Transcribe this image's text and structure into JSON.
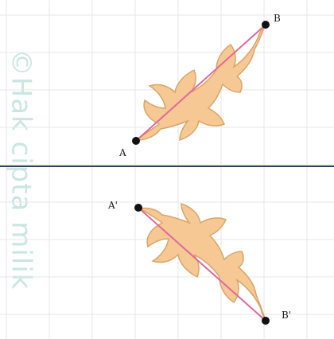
{
  "watermark": "©Hak cipta milik ",
  "points": {
    "A": {
      "label": "A",
      "x": 3,
      "y": -0.6
    },
    "B": {
      "label": "B",
      "x": 6,
      "y": 3.4
    },
    "A_prime": {
      "label": "A'",
      "x": 3,
      "y": 1.6
    },
    "B_prime": {
      "label": "B'",
      "x": 6,
      "y": 7.8
    }
  },
  "grid": {
    "visible": true,
    "step": 1
  },
  "colors": {
    "shape_fill": "#f6c894",
    "shape_stroke": "#d9a56b",
    "segment": "#e06a9a",
    "point": "#111111",
    "axis": "#2d3f55",
    "grid": "#e7e7e7",
    "watermark": "#9fd2c7"
  }
}
